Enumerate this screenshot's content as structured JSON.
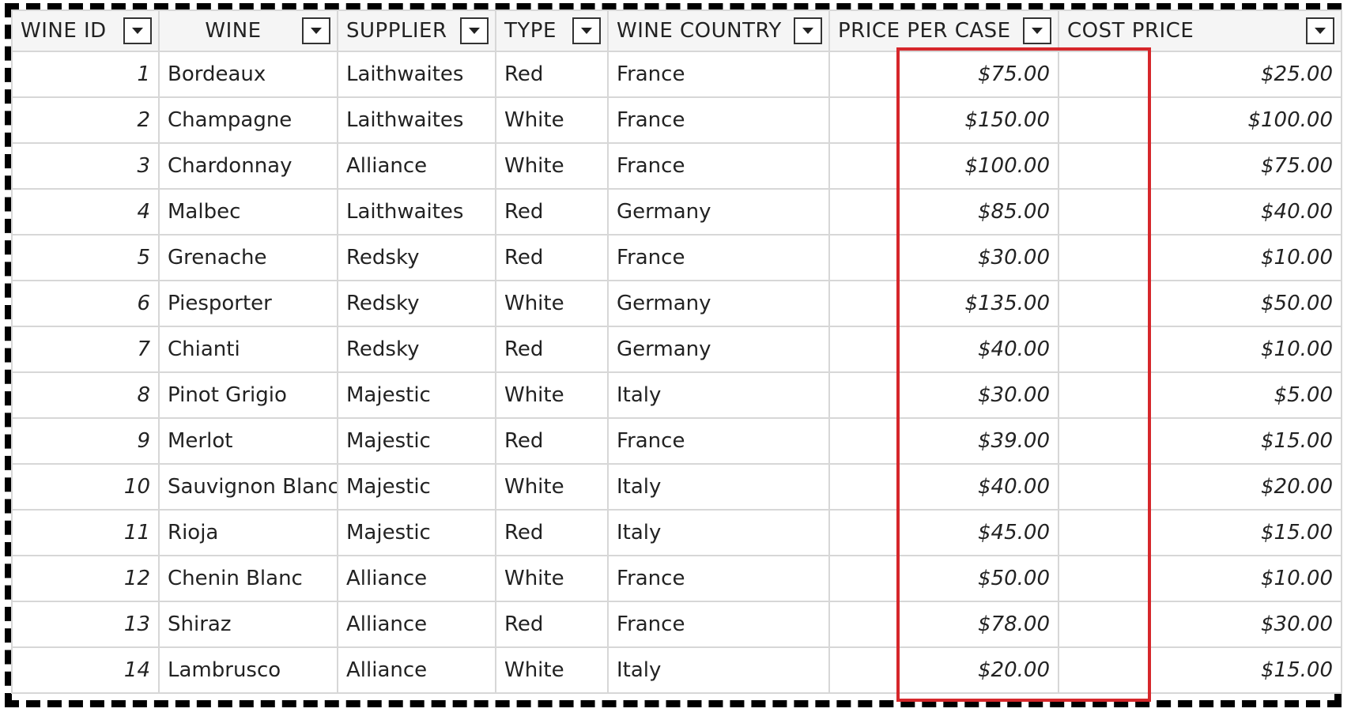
{
  "columns": [
    {
      "key": "wine_id",
      "label": "WINE ID"
    },
    {
      "key": "wine",
      "label": "WINE"
    },
    {
      "key": "supplier",
      "label": "SUPPLIER"
    },
    {
      "key": "type",
      "label": "TYPE"
    },
    {
      "key": "country",
      "label": "WINE COUNTRY"
    },
    {
      "key": "price_per_case",
      "label": "PRICE PER CASE"
    },
    {
      "key": "cost_price",
      "label": "COST PRICE"
    }
  ],
  "rows": [
    [
      "1",
      "Bordeaux",
      "Laithwaites",
      "Red",
      "France",
      "$75.00",
      "$25.00"
    ],
    [
      "2",
      "Champagne",
      "Laithwaites",
      "White",
      "France",
      "$150.00",
      "$100.00"
    ],
    [
      "3",
      "Chardonnay",
      "Alliance",
      "White",
      "France",
      "$100.00",
      "$75.00"
    ],
    [
      "4",
      "Malbec",
      "Laithwaites",
      "Red",
      "Germany",
      "$85.00",
      "$40.00"
    ],
    [
      "5",
      "Grenache",
      "Redsky",
      "Red",
      "France",
      "$30.00",
      "$10.00"
    ],
    [
      "6",
      "Piesporter",
      "Redsky",
      "White",
      "Germany",
      "$135.00",
      "$50.00"
    ],
    [
      "7",
      "Chianti",
      "Redsky",
      "Red",
      "Germany",
      "$40.00",
      "$10.00"
    ],
    [
      "8",
      "Pinot Grigio",
      "Majestic",
      "White",
      "Italy",
      "$30.00",
      "$5.00"
    ],
    [
      "9",
      "Merlot",
      "Majestic",
      "Red",
      "France",
      "$39.00",
      "$15.00"
    ],
    [
      "10",
      "Sauvignon Blanc",
      "Majestic",
      "White",
      "Italy",
      "$40.00",
      "$20.00"
    ],
    [
      "11",
      "Rioja",
      "Majestic",
      "Red",
      "Italy",
      "$45.00",
      "$15.00"
    ],
    [
      "12",
      "Chenin Blanc",
      "Alliance",
      "White",
      "France",
      "$50.00",
      "$10.00"
    ],
    [
      "13",
      "Shiraz",
      "Alliance",
      "Red",
      "France",
      "$78.00",
      "$30.00"
    ],
    [
      "14",
      "Lambrusco",
      "Alliance",
      "White",
      "Italy",
      "$20.00",
      "$15.00"
    ]
  ],
  "highlight": {
    "column": "price_per_case",
    "color": "#d6272b"
  },
  "colors": {
    "grid_line": "#d7d7d7",
    "header_bg": "#f5f5f5",
    "frame": "#000000"
  }
}
